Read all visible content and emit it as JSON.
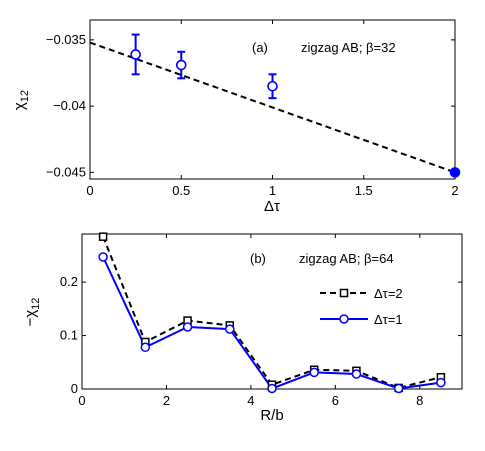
{
  "chart_data": [
    {
      "type": "scatter",
      "panel_label": "(a)",
      "annotation": "zigzag AB;  β=32",
      "xlabel": "Δτ",
      "ylabel": "χ12",
      "xlim": [
        0,
        2
      ],
      "ylim": [
        -0.0455,
        -0.0335
      ],
      "xticks": [
        0,
        0.5,
        1,
        1.5,
        2
      ],
      "xtick_labels": [
        "0",
        "0.5",
        "1",
        "1.5",
        "2"
      ],
      "yticks": [
        -0.045,
        -0.04,
        -0.035
      ],
      "ytick_labels": [
        "−0.045",
        "−0.04",
        "−0.035"
      ],
      "grid": false,
      "colors": {
        "points": "#0000ff",
        "fit": "#000000"
      },
      "series": [
        {
          "kind": "points-with-errorbars",
          "x": [
            0.25,
            0.5,
            1.0,
            2.0
          ],
          "y": [
            -0.0361,
            -0.0369,
            -0.0385,
            -0.045
          ],
          "yerr": [
            0.0015,
            0.001,
            0.0009,
            0.0001
          ]
        },
        {
          "kind": "dashed-fit",
          "x": [
            0,
            2
          ],
          "y": [
            -0.0352,
            -0.045
          ]
        }
      ]
    },
    {
      "type": "line",
      "panel_label": "(b)",
      "annotation": "zigzag AB;  β=64",
      "xlabel": "R/b",
      "ylabel": "−χ12",
      "xlim": [
        0,
        9
      ],
      "ylim": [
        0,
        0.29
      ],
      "xticks": [
        0,
        2,
        4,
        6,
        8
      ],
      "xtick_labels": [
        "0",
        "2",
        "4",
        "6",
        "8"
      ],
      "yticks": [
        0,
        0.1,
        0.2
      ],
      "ytick_labels": [
        "0",
        "0.1",
        "0.2"
      ],
      "grid": false,
      "legend": "right",
      "x": [
        0.5,
        1.5,
        2.5,
        3.5,
        4.5,
        5.5,
        6.5,
        7.5,
        8.5
      ],
      "series": [
        {
          "name": "Δτ=2",
          "color": "#000000",
          "marker": "square",
          "dashed": true,
          "values": [
            0.285,
            0.088,
            0.128,
            0.119,
            0.008,
            0.036,
            0.034,
            0.002,
            0.022
          ]
        },
        {
          "name": "Δτ=1",
          "color": "#0000ff",
          "marker": "circle",
          "dashed": false,
          "values": [
            0.247,
            0.078,
            0.116,
            0.112,
            0.001,
            0.031,
            0.028,
            0.001,
            0.012
          ]
        }
      ]
    }
  ]
}
